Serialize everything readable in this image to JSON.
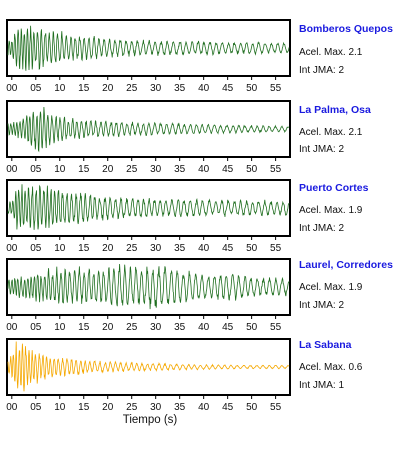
{
  "chart_data": {
    "type": "line",
    "xlabel": "Tiempo (s)",
    "xlim": [
      -1,
      58
    ],
    "x_ticks": [
      "00",
      "05",
      "10",
      "15",
      "20",
      "25",
      "30",
      "35",
      "40",
      "45",
      "50",
      "55"
    ],
    "grid": false,
    "panels": [
      {
        "name": "Bomberos Quepos",
        "accel_label": "Acel. Max. 2.1",
        "intensity_label": "Int JMA: 2",
        "color": "#1f6e1f",
        "envelope": {
          "x": [
            0,
            1,
            3,
            5,
            8,
            12,
            20,
            30,
            40,
            50,
            57
          ],
          "amp": [
            0.35,
            0.95,
            1.0,
            0.95,
            0.75,
            0.55,
            0.4,
            0.32,
            0.28,
            0.25,
            0.22
          ]
        }
      },
      {
        "name": "La Palma, Osa",
        "accel_label": "Acel. Max. 2.1",
        "intensity_label": "Int JMA: 2",
        "color": "#1f6e1f",
        "envelope": {
          "x": [
            0,
            2,
            4,
            6,
            8,
            12,
            20,
            30,
            40,
            50,
            57
          ],
          "amp": [
            0.25,
            0.45,
            0.8,
            1.0,
            0.7,
            0.45,
            0.33,
            0.26,
            0.2,
            0.15,
            0.12
          ]
        }
      },
      {
        "name": "Puerto Cortes",
        "accel_label": "Acel. Max. 1.9",
        "intensity_label": "Int JMA: 2",
        "color": "#1f6e1f",
        "envelope": {
          "x": [
            0,
            1,
            3,
            6,
            10,
            15,
            20,
            30,
            40,
            50,
            57
          ],
          "amp": [
            0.3,
            0.9,
            1.0,
            0.95,
            0.85,
            0.65,
            0.5,
            0.4,
            0.35,
            0.32,
            0.3
          ]
        }
      },
      {
        "name": "Laurel, Corredores",
        "accel_label": "Acel. Max. 1.9",
        "intensity_label": "Int JMA: 2",
        "color": "#1f6e1f",
        "envelope": {
          "x": [
            0,
            3,
            8,
            12,
            17,
            22,
            27,
            30,
            35,
            40,
            45,
            50,
            57
          ],
          "amp": [
            0.35,
            0.5,
            0.75,
            0.8,
            0.75,
            0.9,
            0.85,
            1.0,
            0.7,
            0.55,
            0.6,
            0.4,
            0.35
          ]
        }
      },
      {
        "name": "La Sabana",
        "accel_label": "Acel. Max. 0.6",
        "intensity_label": "Int JMA: 1",
        "color": "#f5a800",
        "envelope": {
          "x": [
            0,
            1,
            3,
            6,
            10,
            15,
            20,
            30,
            40,
            50,
            57
          ],
          "amp": [
            0.45,
            1.0,
            0.9,
            0.6,
            0.4,
            0.3,
            0.22,
            0.15,
            0.1,
            0.08,
            0.07
          ]
        }
      }
    ]
  }
}
